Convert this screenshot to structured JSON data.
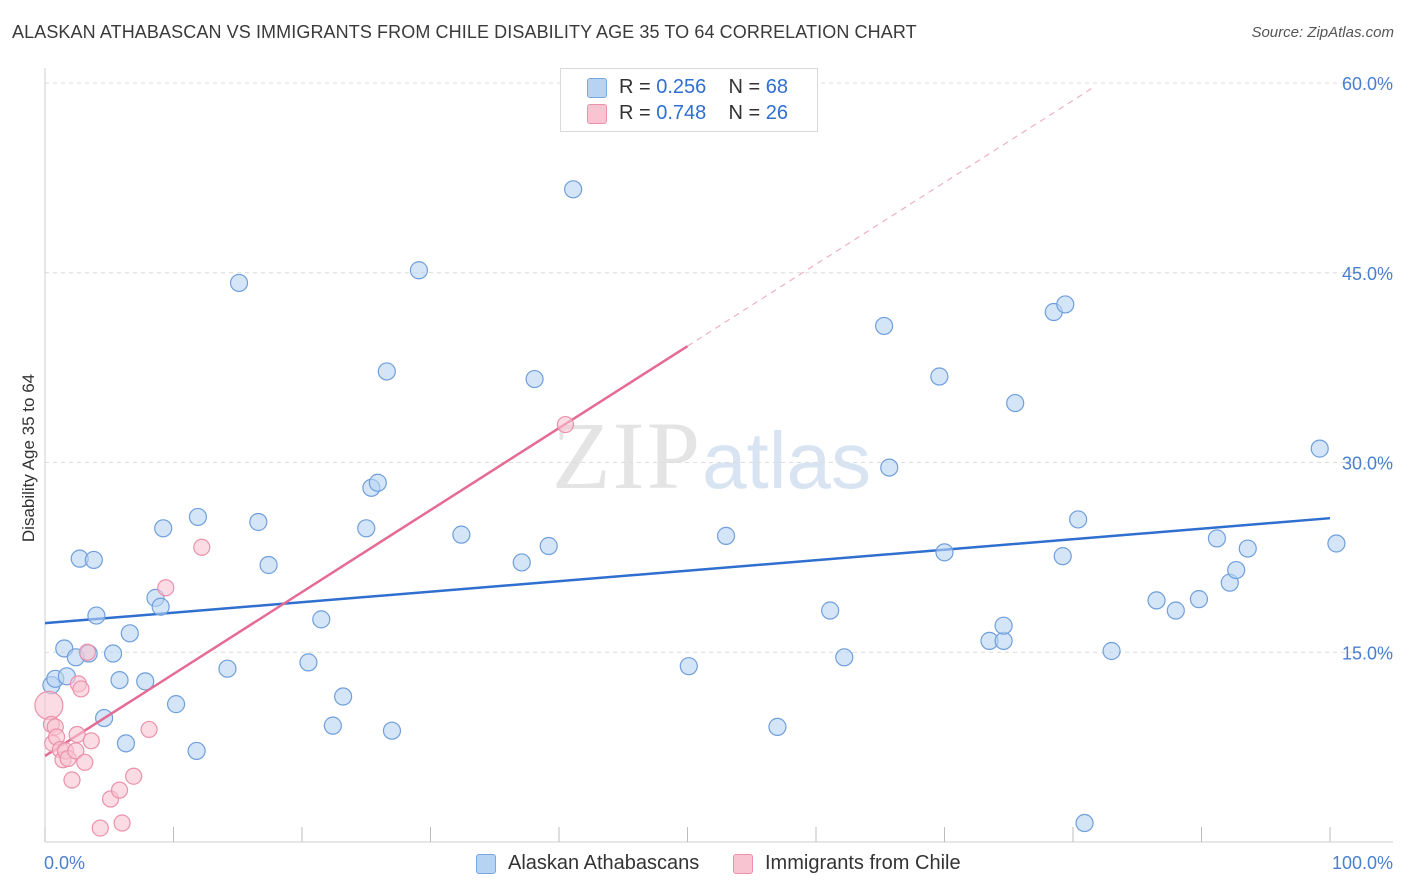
{
  "title": "ALASKAN ATHABASCAN VS IMMIGRANTS FROM CHILE DISABILITY AGE 35 TO 64 CORRELATION CHART",
  "source": "Source: ZipAtlas.com",
  "watermark": {
    "zip": "ZIP",
    "atlas": "atlas"
  },
  "legend": {
    "r_label": "R =",
    "n_label": "N =",
    "series": [
      {
        "r": "0.256",
        "n": "68",
        "fill": "#b7d3f3",
        "stroke": "#7aa7e0"
      },
      {
        "r": "0.748",
        "n": "26",
        "fill": "#f8c4d2",
        "stroke": "#ec90ab"
      }
    ]
  },
  "colors": {
    "blue_fill": "#b7d3f3",
    "blue_stroke": "#6f9fdc",
    "blue_line": "#2f6fcf",
    "pink_fill": "#f8c4d2",
    "pink_stroke": "#ec90ab",
    "pink_line": "#e56b93",
    "grid": "#dcdcdc",
    "tick_label": "#4a7fd0"
  },
  "chart_data": {
    "type": "scatter",
    "title": "ALASKAN ATHABASCAN VS IMMIGRANTS FROM CHILE DISABILITY AGE 35 TO 64 CORRELATION CHART",
    "xlabel": "",
    "ylabel": "Disability Age 35 to 64",
    "xlim": [
      0,
      100
    ],
    "ylim": [
      0,
      60
    ],
    "x_tick_labels": [
      "0.0%",
      "100.0%"
    ],
    "y_ticks": [
      15,
      30,
      45,
      60
    ],
    "y_tick_labels": [
      "15.0%",
      "30.0%",
      "45.0%",
      "60.0%"
    ],
    "grid": true,
    "series": [
      {
        "name": "Alaskan Athabascans",
        "trend": {
          "x": [
            0,
            100
          ],
          "y": [
            17.3,
            25.6
          ]
        },
        "points": [
          [
            0.5,
            12.4
          ],
          [
            0.8,
            12.9
          ],
          [
            1.5,
            15.3
          ],
          [
            1.7,
            13.1
          ],
          [
            2.4,
            14.6
          ],
          [
            2.7,
            22.4
          ],
          [
            3.4,
            14.9
          ],
          [
            3.8,
            22.3
          ],
          [
            4.0,
            17.9
          ],
          [
            4.6,
            9.8
          ],
          [
            5.3,
            14.9
          ],
          [
            5.8,
            12.8
          ],
          [
            6.3,
            7.8
          ],
          [
            6.6,
            16.5
          ],
          [
            7.8,
            12.7
          ],
          [
            8.6,
            19.3
          ],
          [
            9.0,
            18.6
          ],
          [
            9.2,
            24.8
          ],
          [
            10.2,
            10.9
          ],
          [
            11.8,
            7.2
          ],
          [
            11.9,
            25.7
          ],
          [
            14.2,
            13.7
          ],
          [
            15.1,
            44.2
          ],
          [
            16.6,
            25.3
          ],
          [
            17.4,
            21.9
          ],
          [
            20.5,
            14.2
          ],
          [
            21.5,
            17.6
          ],
          [
            22.4,
            9.2
          ],
          [
            23.2,
            11.5
          ],
          [
            25.0,
            24.8
          ],
          [
            25.4,
            28.0
          ],
          [
            25.9,
            28.4
          ],
          [
            26.6,
            37.2
          ],
          [
            27.0,
            8.8
          ],
          [
            29.1,
            45.2
          ],
          [
            32.4,
            24.3
          ],
          [
            37.1,
            22.1
          ],
          [
            38.1,
            36.6
          ],
          [
            39.2,
            23.4
          ],
          [
            41.1,
            51.6
          ],
          [
            50.1,
            13.9
          ],
          [
            53.0,
            24.2
          ],
          [
            57.0,
            9.1
          ],
          [
            61.1,
            18.3
          ],
          [
            62.2,
            14.6
          ],
          [
            65.3,
            40.8
          ],
          [
            65.7,
            29.6
          ],
          [
            69.6,
            36.8
          ],
          [
            70.0,
            22.9
          ],
          [
            73.5,
            15.9
          ],
          [
            74.6,
            15.9
          ],
          [
            74.6,
            17.1
          ],
          [
            75.5,
            34.7
          ],
          [
            78.5,
            41.9
          ],
          [
            79.2,
            22.6
          ],
          [
            79.4,
            42.5
          ],
          [
            80.4,
            25.5
          ],
          [
            80.9,
            1.5
          ],
          [
            83.0,
            15.1
          ],
          [
            86.5,
            19.1
          ],
          [
            88.0,
            18.3
          ],
          [
            89.8,
            19.2
          ],
          [
            91.2,
            24.0
          ],
          [
            92.2,
            20.5
          ],
          [
            92.7,
            21.5
          ],
          [
            93.6,
            23.2
          ],
          [
            99.2,
            31.1
          ],
          [
            100.5,
            23.6
          ]
        ]
      },
      {
        "name": "Immigrants from Chile",
        "trend": {
          "x": [
            0,
            50
          ],
          "y": [
            6.8,
            39.2
          ]
        },
        "trend_dashed": {
          "x": [
            50,
            81.5
          ],
          "y": [
            39.2,
            59.6
          ]
        },
        "points": [
          [
            0.3,
            10.8
          ],
          [
            0.5,
            9.3
          ],
          [
            0.6,
            7.8
          ],
          [
            0.8,
            9.1
          ],
          [
            0.9,
            8.3
          ],
          [
            1.2,
            7.3
          ],
          [
            1.4,
            6.5
          ],
          [
            1.6,
            7.2
          ],
          [
            1.8,
            6.6
          ],
          [
            2.1,
            4.9
          ],
          [
            2.4,
            7.2
          ],
          [
            2.5,
            8.5
          ],
          [
            2.6,
            12.5
          ],
          [
            2.8,
            12.1
          ],
          [
            3.1,
            6.3
          ],
          [
            3.3,
            15.0
          ],
          [
            3.6,
            8.0
          ],
          [
            4.3,
            1.1
          ],
          [
            5.1,
            3.4
          ],
          [
            5.8,
            4.1
          ],
          [
            6.0,
            1.5
          ],
          [
            6.9,
            5.2
          ],
          [
            8.1,
            8.9
          ],
          [
            9.4,
            20.1
          ],
          [
            12.2,
            23.3
          ],
          [
            40.5,
            33.0
          ]
        ]
      }
    ]
  },
  "bottom_legend": [
    "Alaskan Athabascans",
    "Immigrants from Chile"
  ]
}
